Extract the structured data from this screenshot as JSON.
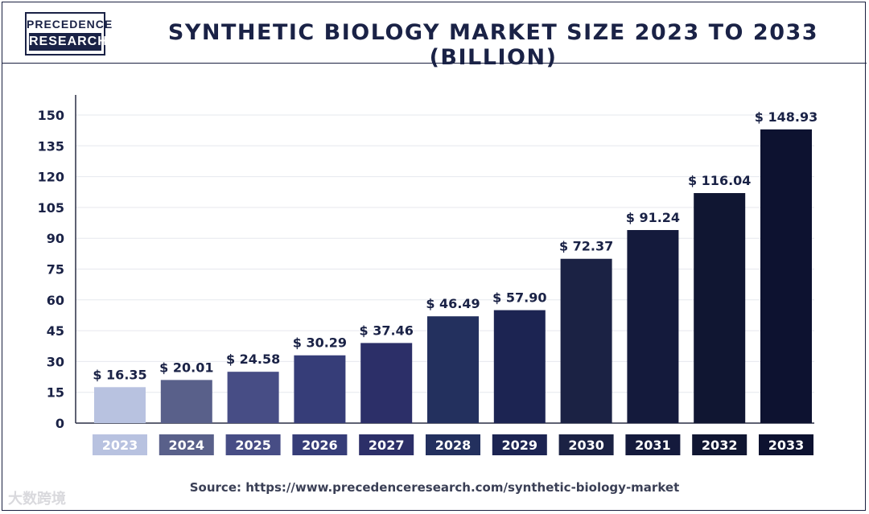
{
  "logo": {
    "line1": "PRECEDENCE",
    "line2": "RESEARCH"
  },
  "watermark": "大数跨境",
  "chart_data": {
    "type": "bar",
    "title": "SYNTHETIC BIOLOGY MARKET SIZE 2023 TO 2033 (BILLION)",
    "categories": [
      "2023",
      "2024",
      "2025",
      "2026",
      "2027",
      "2028",
      "2029",
      "2030",
      "2031",
      "2032",
      "2033"
    ],
    "values": [
      16.35,
      20.01,
      24.58,
      30.29,
      37.46,
      46.49,
      57.9,
      72.37,
      91.24,
      116.04,
      148.93
    ],
    "bar_heights": [
      17.5,
      21,
      25,
      33,
      39,
      52,
      55,
      80,
      94,
      112,
      143
    ],
    "value_labels": [
      "$ 16.35",
      "$ 20.01",
      "$ 24.58",
      "$ 30.29",
      "$ 37.46",
      "$ 46.49",
      "$ 57.90",
      "$ 72.37",
      "$ 91.24",
      "$ 116.04",
      "$ 148.93"
    ],
    "yticks": [
      0,
      15,
      30,
      45,
      60,
      75,
      90,
      105,
      120,
      135,
      150
    ],
    "ylim": [
      0,
      150
    ],
    "xlabel": "",
    "ylabel": "",
    "colors": [
      "#b8c2e0",
      "#59608a",
      "#474d85",
      "#363d78",
      "#2c2f68",
      "#23305e",
      "#1c2452",
      "#1b2244",
      "#141a3c",
      "#101632",
      "#0d1230"
    ]
  },
  "source": "Source: https://www.precedenceresearch.com/synthetic-biology-market"
}
